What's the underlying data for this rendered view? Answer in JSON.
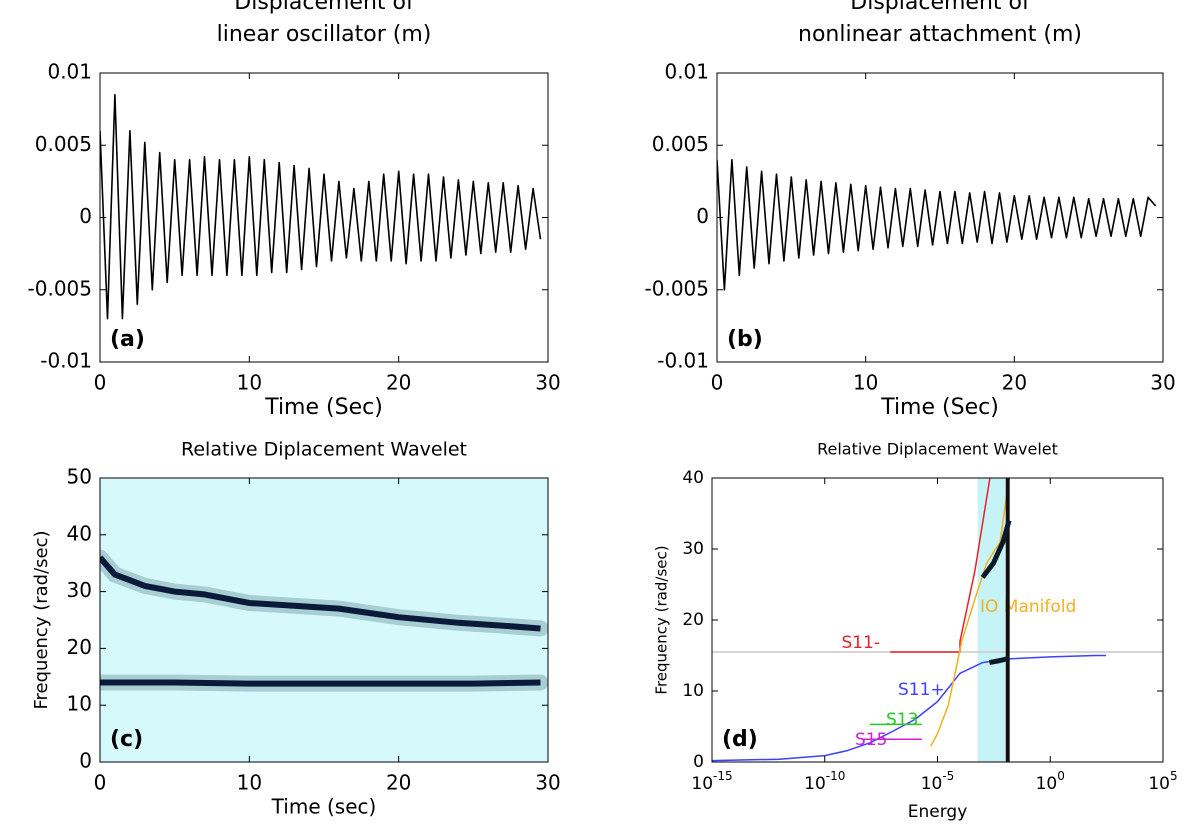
{
  "chart_data": [
    {
      "type": "line",
      "title": [
        "Displacement of",
        "linear oscillator (m)"
      ],
      "xlabel": "Time (Sec)",
      "annotation": "(a)",
      "xlim": [
        0,
        30
      ],
      "xticks": [
        0,
        10,
        20,
        30
      ],
      "ylim": [
        -0.01,
        0.01
      ],
      "yticks": [
        -0.01,
        -0.005,
        0,
        0.005,
        0.01
      ],
      "x": [
        0,
        0.5,
        1,
        1.5,
        2,
        2.5,
        3,
        3.5,
        4,
        4.5,
        5,
        5.5,
        6,
        6.5,
        7,
        7.5,
        8,
        8.5,
        9,
        9.5,
        10,
        10.5,
        11,
        11.5,
        12,
        12.5,
        13,
        13.5,
        14,
        14.5,
        15,
        15.5,
        16,
        16.5,
        17,
        17.5,
        18,
        18.5,
        19,
        19.5,
        20,
        20.5,
        21,
        21.5,
        22,
        22.5,
        23,
        23.5,
        24,
        24.5,
        25,
        25.5,
        26,
        26.5,
        27,
        27.5,
        28,
        28.5,
        29,
        29.5
      ],
      "series": [
        {
          "color": "#000000",
          "values": [
            0.006,
            -0.007,
            0.0085,
            -0.007,
            0.006,
            -0.006,
            0.0052,
            -0.005,
            0.0045,
            -0.0045,
            0.004,
            -0.004,
            0.004,
            -0.004,
            0.0042,
            -0.004,
            0.004,
            -0.004,
            0.004,
            -0.004,
            0.0042,
            -0.004,
            0.004,
            -0.0038,
            0.0038,
            -0.0038,
            0.0036,
            -0.0036,
            0.0034,
            -0.0034,
            0.003,
            -0.003,
            0.0025,
            -0.0028,
            0.002,
            -0.003,
            0.0025,
            -0.003,
            0.003,
            -0.003,
            0.0032,
            -0.0032,
            0.003,
            -0.003,
            0.003,
            -0.003,
            0.0028,
            -0.0028,
            0.0026,
            -0.0026,
            0.0025,
            -0.0025,
            0.0024,
            -0.0024,
            0.0024,
            -0.0024,
            0.0022,
            -0.0022,
            0.002,
            -0.0015
          ]
        }
      ]
    },
    {
      "type": "line",
      "title": [
        "Displacement of",
        "nonlinear attachment (m)"
      ],
      "xlabel": "Time (Sec)",
      "annotation": "(b)",
      "xlim": [
        0,
        30
      ],
      "xticks": [
        0,
        10,
        20,
        30
      ],
      "ylim": [
        -0.01,
        0.01
      ],
      "yticks": [
        -0.01,
        -0.005,
        0,
        0.005,
        0.01
      ],
      "x": [
        0,
        0.5,
        1,
        1.5,
        2,
        2.5,
        3,
        3.5,
        4,
        4.5,
        5,
        5.5,
        6,
        6.5,
        7,
        7.5,
        8,
        8.5,
        9,
        9.5,
        10,
        10.5,
        11,
        11.5,
        12,
        12.5,
        13,
        13.5,
        14,
        14.5,
        15,
        15.5,
        16,
        16.5,
        17,
        17.5,
        18,
        18.5,
        19,
        19.5,
        20,
        20.5,
        21,
        21.5,
        22,
        22.5,
        23,
        23.5,
        24,
        24.5,
        25,
        25.5,
        26,
        26.5,
        27,
        27.5,
        28,
        28.5,
        29,
        29.5
      ],
      "series": [
        {
          "color": "#000000",
          "values": [
            0.004,
            -0.005,
            0.004,
            -0.004,
            0.0035,
            -0.0035,
            0.0032,
            -0.0032,
            0.003,
            -0.003,
            0.0028,
            -0.0028,
            0.0026,
            -0.0026,
            0.0025,
            -0.0025,
            0.0024,
            -0.0024,
            0.0023,
            -0.0023,
            0.0022,
            -0.0022,
            0.0021,
            -0.0021,
            0.002,
            -0.002,
            0.002,
            -0.002,
            0.0019,
            -0.0019,
            0.0018,
            -0.0018,
            0.0018,
            -0.0018,
            0.0017,
            -0.0017,
            0.0018,
            -0.0018,
            0.0017,
            -0.0017,
            0.0015,
            -0.0015,
            0.0015,
            -0.0015,
            0.0014,
            -0.0014,
            0.0014,
            -0.0014,
            0.0014,
            -0.0014,
            0.0013,
            -0.0013,
            0.0013,
            -0.0013,
            0.0013,
            -0.0013,
            0.0013,
            -0.0013,
            0.0014,
            0.0008
          ]
        }
      ]
    },
    {
      "type": "line",
      "title": [
        "Relative Diplacement Wavelet"
      ],
      "xlabel": "Time (sec)",
      "ylabel": "Frequency (rad/sec)",
      "annotation": "(c)",
      "background": "#d6fafc",
      "halo": true,
      "xlim": [
        0,
        30
      ],
      "xticks": [
        0,
        10,
        20,
        30
      ],
      "ylim": [
        0,
        50
      ],
      "yticks": [
        0,
        10,
        20,
        30,
        40,
        50
      ],
      "series": [
        {
          "color": "#0c1a3a",
          "x": [
            0,
            1,
            2,
            3,
            5,
            7,
            10,
            13,
            16,
            20,
            24,
            27,
            29.5
          ],
          "values": [
            36,
            33,
            32,
            31,
            30,
            29.5,
            28,
            27.5,
            27,
            25.5,
            24.5,
            24,
            23.5
          ]
        },
        {
          "color": "#0c1a3a",
          "x": [
            0,
            5,
            10,
            15,
            20,
            25,
            29.5
          ],
          "values": [
            14,
            14,
            13.8,
            13.8,
            13.8,
            13.8,
            14
          ]
        }
      ]
    },
    {
      "type": "line",
      "title": [
        "Relative Diplacement Wavelet"
      ],
      "xlabel": "Energy",
      "ylabel": "Frequency (rad/sec)",
      "annotation": "(d)",
      "xscale": "log",
      "band": {
        "x": [
          0.0006,
          0.01
        ],
        "color": "#c6f4f6"
      },
      "xlim": [
        1e-15,
        100000
      ],
      "xticks": [
        {
          "value": 1e-15,
          "label": "10",
          "exponent": "-15"
        },
        {
          "value": 1e-10,
          "label": "10",
          "exponent": "-10"
        },
        {
          "value": 1e-05,
          "label": "10",
          "exponent": "-5"
        },
        {
          "value": 1,
          "label": "10",
          "exponent": "0"
        },
        {
          "value": 100000,
          "label": "10",
          "exponent": "5"
        }
      ],
      "ylim": [
        0,
        40
      ],
      "yticks": [
        0,
        10,
        20,
        30,
        40
      ],
      "series": [
        {
          "color": "#c8c8c8",
          "x": [
            1e-15,
            100000
          ],
          "values": [
            15.5,
            15.5
          ]
        },
        {
          "name": "S11-",
          "color": "#e8202a",
          "x": [
            8e-08,
            0.0001,
            0.0001,
            0.00046,
            0.0021
          ],
          "values": [
            15.5,
            15.5,
            17,
            27,
            40
          ]
        },
        {
          "name": "S11+",
          "color": "#4040ff",
          "x": [
            1e-15,
            1e-12,
            1e-10,
            1e-09,
            1e-08,
            1e-07,
            1e-06,
            1e-05,
            0.0001,
            0.001,
            0.01,
            1,
            100,
            300
          ],
          "values": [
            0.2,
            0.4,
            0.9,
            1.6,
            2.7,
            4.3,
            6,
            8.5,
            12.5,
            14,
            14.5,
            14.8,
            15,
            15
          ]
        },
        {
          "name": "S13",
          "color": "#22cc22",
          "x": [
            1e-08,
            2e-06
          ],
          "values": [
            5.3,
            5.3
          ]
        },
        {
          "name": "S15",
          "color": "#d020d0",
          "x": [
            5e-09,
            2e-06
          ],
          "values": [
            3.2,
            3.2
          ]
        },
        {
          "name": "IO Manifold",
          "color": "#f0b020",
          "x": [
            5e-06,
            1e-05,
            3e-05,
            0.00012,
            0.00046,
            0.0015,
            0.006,
            0.015
          ],
          "values": [
            2.2,
            4,
            8,
            17,
            23,
            28,
            31,
            40
          ]
        },
        {
          "color": "#111111",
          "x": [
            0.013,
            0.013
          ],
          "values": [
            0,
            40
          ]
        },
        {
          "color": "#0a1a2a",
          "x": [
            0.001,
            0.003,
            0.008,
            0.015
          ],
          "values": [
            26,
            28,
            31,
            34
          ]
        },
        {
          "color": "#0a1a2a",
          "x": [
            0.002,
            0.006,
            0.015
          ],
          "values": [
            14,
            14.3,
            14.6
          ]
        }
      ]
    }
  ]
}
